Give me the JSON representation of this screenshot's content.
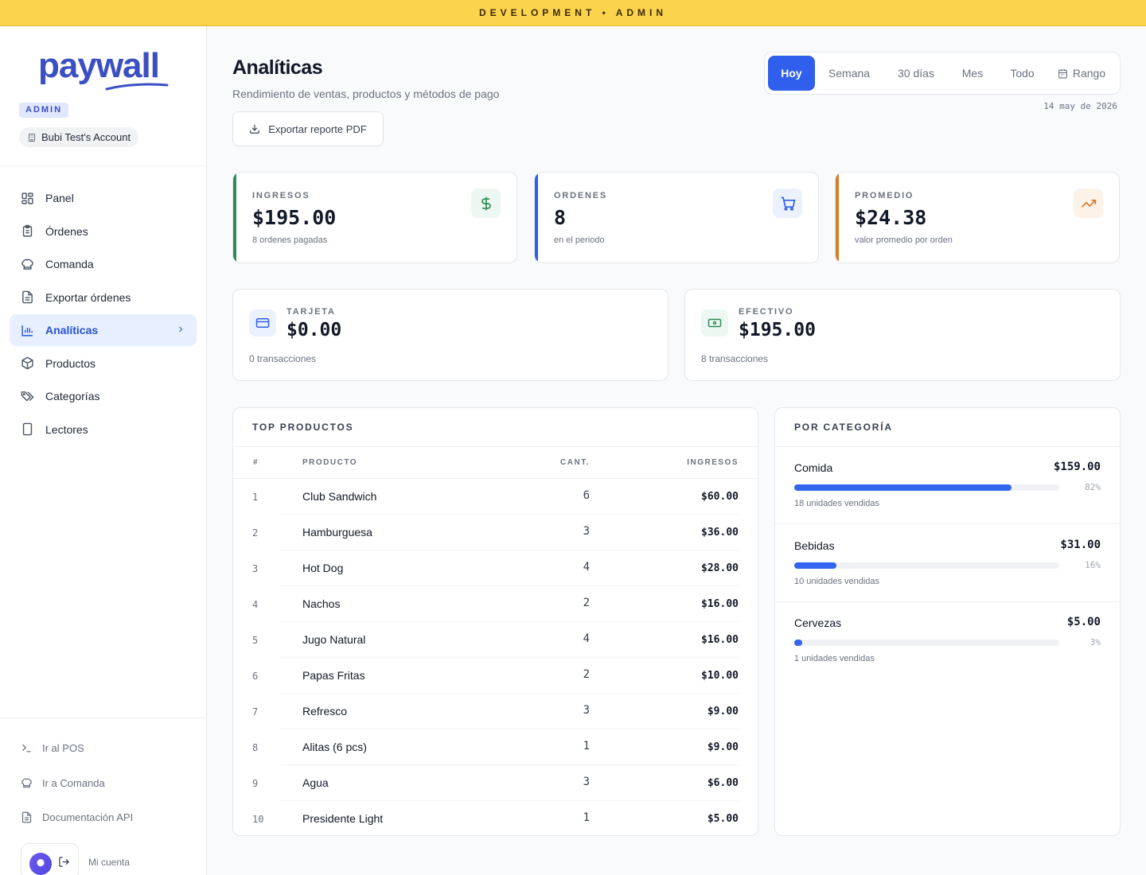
{
  "env_banner": "DEVELOPMENT • ADMIN",
  "brand": {
    "name": "paywall",
    "role_badge": "ADMIN",
    "account": "Bubi Test's Account"
  },
  "nav": [
    {
      "label": "Panel",
      "icon": "grid-icon"
    },
    {
      "label": "Órdenes",
      "icon": "clipboard-icon"
    },
    {
      "label": "Comanda",
      "icon": "chef-hat-icon"
    },
    {
      "label": "Exportar órdenes",
      "icon": "file-text-icon"
    },
    {
      "label": "Analíticas",
      "icon": "bar-chart-icon",
      "active": true
    },
    {
      "label": "Productos",
      "icon": "package-icon"
    },
    {
      "label": "Categorías",
      "icon": "tags-icon"
    },
    {
      "label": "Lectores",
      "icon": "tablet-icon"
    }
  ],
  "bottom_links": [
    {
      "label": "Ir al POS",
      "icon": "terminal-icon"
    },
    {
      "label": "Ir a Comanda",
      "icon": "chef-hat-icon"
    },
    {
      "label": "Documentación API",
      "icon": "file-text-icon"
    }
  ],
  "account_menu": {
    "label": "Mi cuenta"
  },
  "header": {
    "title": "Analíticas",
    "subtitle": "Rendimiento de ventas, productos y métodos de pago",
    "export_label": "Exportar reporte PDF",
    "date": "14 may de 2026"
  },
  "range_tabs": [
    {
      "label": "Hoy",
      "active": true
    },
    {
      "label": "Semana"
    },
    {
      "label": "30 días"
    },
    {
      "label": "Mes"
    },
    {
      "label": "Todo"
    },
    {
      "label": "Rango",
      "icon": "calendar-icon"
    }
  ],
  "kpis": [
    {
      "label": "INGRESOS",
      "value": "$195.00",
      "sub": "8 ordenes pagadas",
      "accent": "#2f8a57",
      "icon": "dollar-icon"
    },
    {
      "label": "ORDENES",
      "value": "8",
      "sub": "en el periodo",
      "accent": "#2f5fec",
      "icon": "cart-icon"
    },
    {
      "label": "PROMEDIO",
      "value": "$24.38",
      "sub": "valor promedio por orden",
      "accent": "#d97a28",
      "icon": "trending-up-icon"
    }
  ],
  "payments": [
    {
      "label": "TARJETA",
      "value": "$0.00",
      "sub": "0 transacciones",
      "icon": "credit-card-icon"
    },
    {
      "label": "EFECTIVO",
      "value": "$195.00",
      "sub": "8 transacciones",
      "icon": "banknote-icon"
    }
  ],
  "top_products": {
    "title": "TOP PRODUCTOS",
    "columns": [
      "#",
      "PRODUCTO",
      "CANT.",
      "INGRESOS"
    ],
    "rows": [
      {
        "rank": "1",
        "name": "Club Sandwich",
        "qty": "6",
        "revenue": "$60.00"
      },
      {
        "rank": "2",
        "name": "Hamburguesa",
        "qty": "3",
        "revenue": "$36.00"
      },
      {
        "rank": "3",
        "name": "Hot Dog",
        "qty": "4",
        "revenue": "$28.00"
      },
      {
        "rank": "4",
        "name": "Nachos",
        "qty": "2",
        "revenue": "$16.00"
      },
      {
        "rank": "5",
        "name": "Jugo Natural",
        "qty": "4",
        "revenue": "$16.00"
      },
      {
        "rank": "6",
        "name": "Papas Fritas",
        "qty": "2",
        "revenue": "$10.00"
      },
      {
        "rank": "7",
        "name": "Refresco",
        "qty": "3",
        "revenue": "$9.00"
      },
      {
        "rank": "8",
        "name": "Alitas (6 pcs)",
        "qty": "1",
        "revenue": "$9.00"
      },
      {
        "rank": "9",
        "name": "Agua",
        "qty": "3",
        "revenue": "$6.00"
      },
      {
        "rank": "10",
        "name": "Presidente Light",
        "qty": "1",
        "revenue": "$5.00"
      }
    ]
  },
  "categories": {
    "title": "POR CATEGORÍA",
    "items": [
      {
        "name": "Comida",
        "amount": "$159.00",
        "percent_label": "82%",
        "share": 0.82,
        "units": "18 unidades vendidas"
      },
      {
        "name": "Bebidas",
        "amount": "$31.00",
        "percent_label": "16%",
        "share": 0.16,
        "units": "10 unidades vendidas"
      },
      {
        "name": "Cervezas",
        "amount": "$5.00",
        "percent_label": "3%",
        "share": 0.03,
        "units": "1 unidades vendidas"
      }
    ]
  }
}
